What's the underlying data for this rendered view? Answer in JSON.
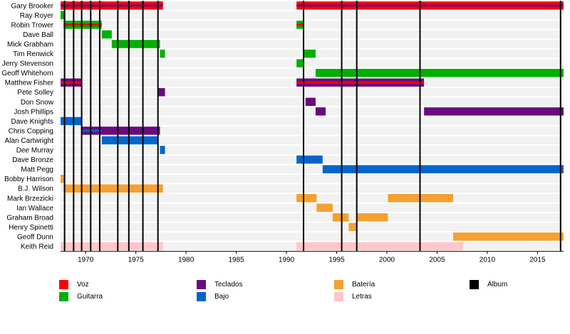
{
  "chart_data": {
    "type": "timeline",
    "x_axis": {
      "min": 1967.5,
      "max": 2017.6,
      "ticks": [
        1970,
        1975,
        1980,
        1985,
        1990,
        1995,
        2000,
        2005,
        2010,
        2015
      ]
    },
    "roles": {
      "voz": {
        "label": "Voz",
        "color": "#ff0000"
      },
      "guitarra": {
        "label": "Guitarra",
        "color": "#00b000"
      },
      "teclados": {
        "label": "Teclados",
        "color": "#6a0a80"
      },
      "bajo": {
        "label": "Bajo",
        "color": "#0066cc"
      },
      "bateria": {
        "label": "Batería",
        "color": "#f5a030"
      },
      "letras": {
        "label": "Letras",
        "color": "#ffc6cc"
      },
      "album": {
        "label": "Álbum",
        "color": "#000000"
      }
    },
    "members": [
      {
        "name": "Gary Brooker",
        "bars": [
          {
            "start": 1967.5,
            "end": 1977.7,
            "role": "voz",
            "secondary": "teclados"
          },
          {
            "start": 1991.0,
            "end": 2017.6,
            "role": "voz",
            "secondary": "teclados"
          }
        ]
      },
      {
        "name": "Ray Royer",
        "bars": [
          {
            "start": 1967.5,
            "end": 1967.9,
            "role": "guitarra"
          }
        ]
      },
      {
        "name": "Robin Trower",
        "bars": [
          {
            "start": 1967.8,
            "end": 1971.6,
            "role": "guitarra",
            "secondary": "voz"
          },
          {
            "start": 1991.0,
            "end": 1991.7,
            "role": "guitarra",
            "secondary": "voz"
          }
        ]
      },
      {
        "name": "Dave Ball",
        "bars": [
          {
            "start": 1971.6,
            "end": 1972.6,
            "role": "guitarra"
          }
        ]
      },
      {
        "name": "Mick Grabham",
        "bars": [
          {
            "start": 1972.6,
            "end": 1977.4,
            "role": "guitarra"
          }
        ]
      },
      {
        "name": "Tim Renwick",
        "bars": [
          {
            "start": 1977.4,
            "end": 1977.9,
            "role": "guitarra"
          },
          {
            "start": 1991.7,
            "end": 1992.9,
            "role": "guitarra"
          }
        ]
      },
      {
        "name": "Jerry Stevenson",
        "bars": [
          {
            "start": 1991.0,
            "end": 1991.7,
            "role": "guitarra"
          }
        ]
      },
      {
        "name": "Geoff Whitehorn",
        "bars": [
          {
            "start": 1992.9,
            "end": 2017.6,
            "role": "guitarra"
          }
        ]
      },
      {
        "name": "Matthew Fisher",
        "bars": [
          {
            "start": 1967.5,
            "end": 1969.6,
            "role": "teclados",
            "secondary": "voz"
          },
          {
            "start": 1991.0,
            "end": 2003.7,
            "role": "teclados",
            "secondary": "voz"
          }
        ]
      },
      {
        "name": "Pete Solley",
        "bars": [
          {
            "start": 1977.2,
            "end": 1977.9,
            "role": "teclados"
          }
        ]
      },
      {
        "name": "Don Snow",
        "bars": [
          {
            "start": 1991.9,
            "end": 1992.9,
            "role": "teclados"
          }
        ]
      },
      {
        "name": "Josh Phillips",
        "bars": [
          {
            "start": 1992.9,
            "end": 1993.9,
            "role": "teclados"
          },
          {
            "start": 2003.7,
            "end": 2017.6,
            "role": "teclados"
          }
        ]
      },
      {
        "name": "Dave Knights",
        "bars": [
          {
            "start": 1967.5,
            "end": 1969.6,
            "role": "bajo"
          }
        ]
      },
      {
        "name": "Chris Copping",
        "bars": [
          {
            "start": 1969.6,
            "end": 1977.4,
            "role": "teclados",
            "secondary": "bajo",
            "secondary_end": 1971.6
          }
        ]
      },
      {
        "name": "Alan Cartwright",
        "bars": [
          {
            "start": 1971.6,
            "end": 1977.2,
            "role": "bajo"
          }
        ]
      },
      {
        "name": "Dee Murray",
        "bars": [
          {
            "start": 1977.4,
            "end": 1977.9,
            "role": "bajo"
          }
        ]
      },
      {
        "name": "Dave Bronze",
        "bars": [
          {
            "start": 1991.0,
            "end": 1993.6,
            "role": "bajo"
          }
        ]
      },
      {
        "name": "Matt Pegg",
        "bars": [
          {
            "start": 1993.6,
            "end": 2017.6,
            "role": "bajo"
          }
        ]
      },
      {
        "name": "Bobby Harrison",
        "bars": [
          {
            "start": 1967.5,
            "end": 1967.9,
            "role": "bateria"
          }
        ]
      },
      {
        "name": "B.J. Wilson",
        "bars": [
          {
            "start": 1967.8,
            "end": 1977.7,
            "role": "bateria"
          }
        ]
      },
      {
        "name": "Mark Brzezicki",
        "bars": [
          {
            "start": 1991.0,
            "end": 1993.0,
            "role": "bateria"
          },
          {
            "start": 2000.1,
            "end": 2006.6,
            "role": "bateria"
          }
        ]
      },
      {
        "name": "Ian Wallace",
        "bars": [
          {
            "start": 1993.0,
            "end": 1994.6,
            "role": "bateria"
          }
        ]
      },
      {
        "name": "Graham Broad",
        "bars": [
          {
            "start": 1994.6,
            "end": 1996.2,
            "role": "bateria"
          },
          {
            "start": 1997.0,
            "end": 2000.1,
            "role": "bateria"
          }
        ]
      },
      {
        "name": "Henry Spinetti",
        "bars": [
          {
            "start": 1996.2,
            "end": 1997.0,
            "role": "bateria"
          }
        ]
      },
      {
        "name": "Geoff Dunn",
        "bars": [
          {
            "start": 2006.6,
            "end": 2017.6,
            "role": "bateria"
          }
        ]
      },
      {
        "name": "Keith Reid",
        "bars": [
          {
            "start": 1967.5,
            "end": 1977.7,
            "role": "letras"
          },
          {
            "start": 1991.0,
            "end": 2007.6,
            "role": "letras"
          }
        ]
      }
    ],
    "albums": [
      1967.9,
      1968.8,
      1969.6,
      1970.5,
      1971.4,
      1973.2,
      1974.3,
      1975.7,
      1977.2,
      1991.7,
      1995.5,
      1997.0,
      2003.3,
      2017.3
    ],
    "grid": true,
    "legend_position": "bottom"
  }
}
